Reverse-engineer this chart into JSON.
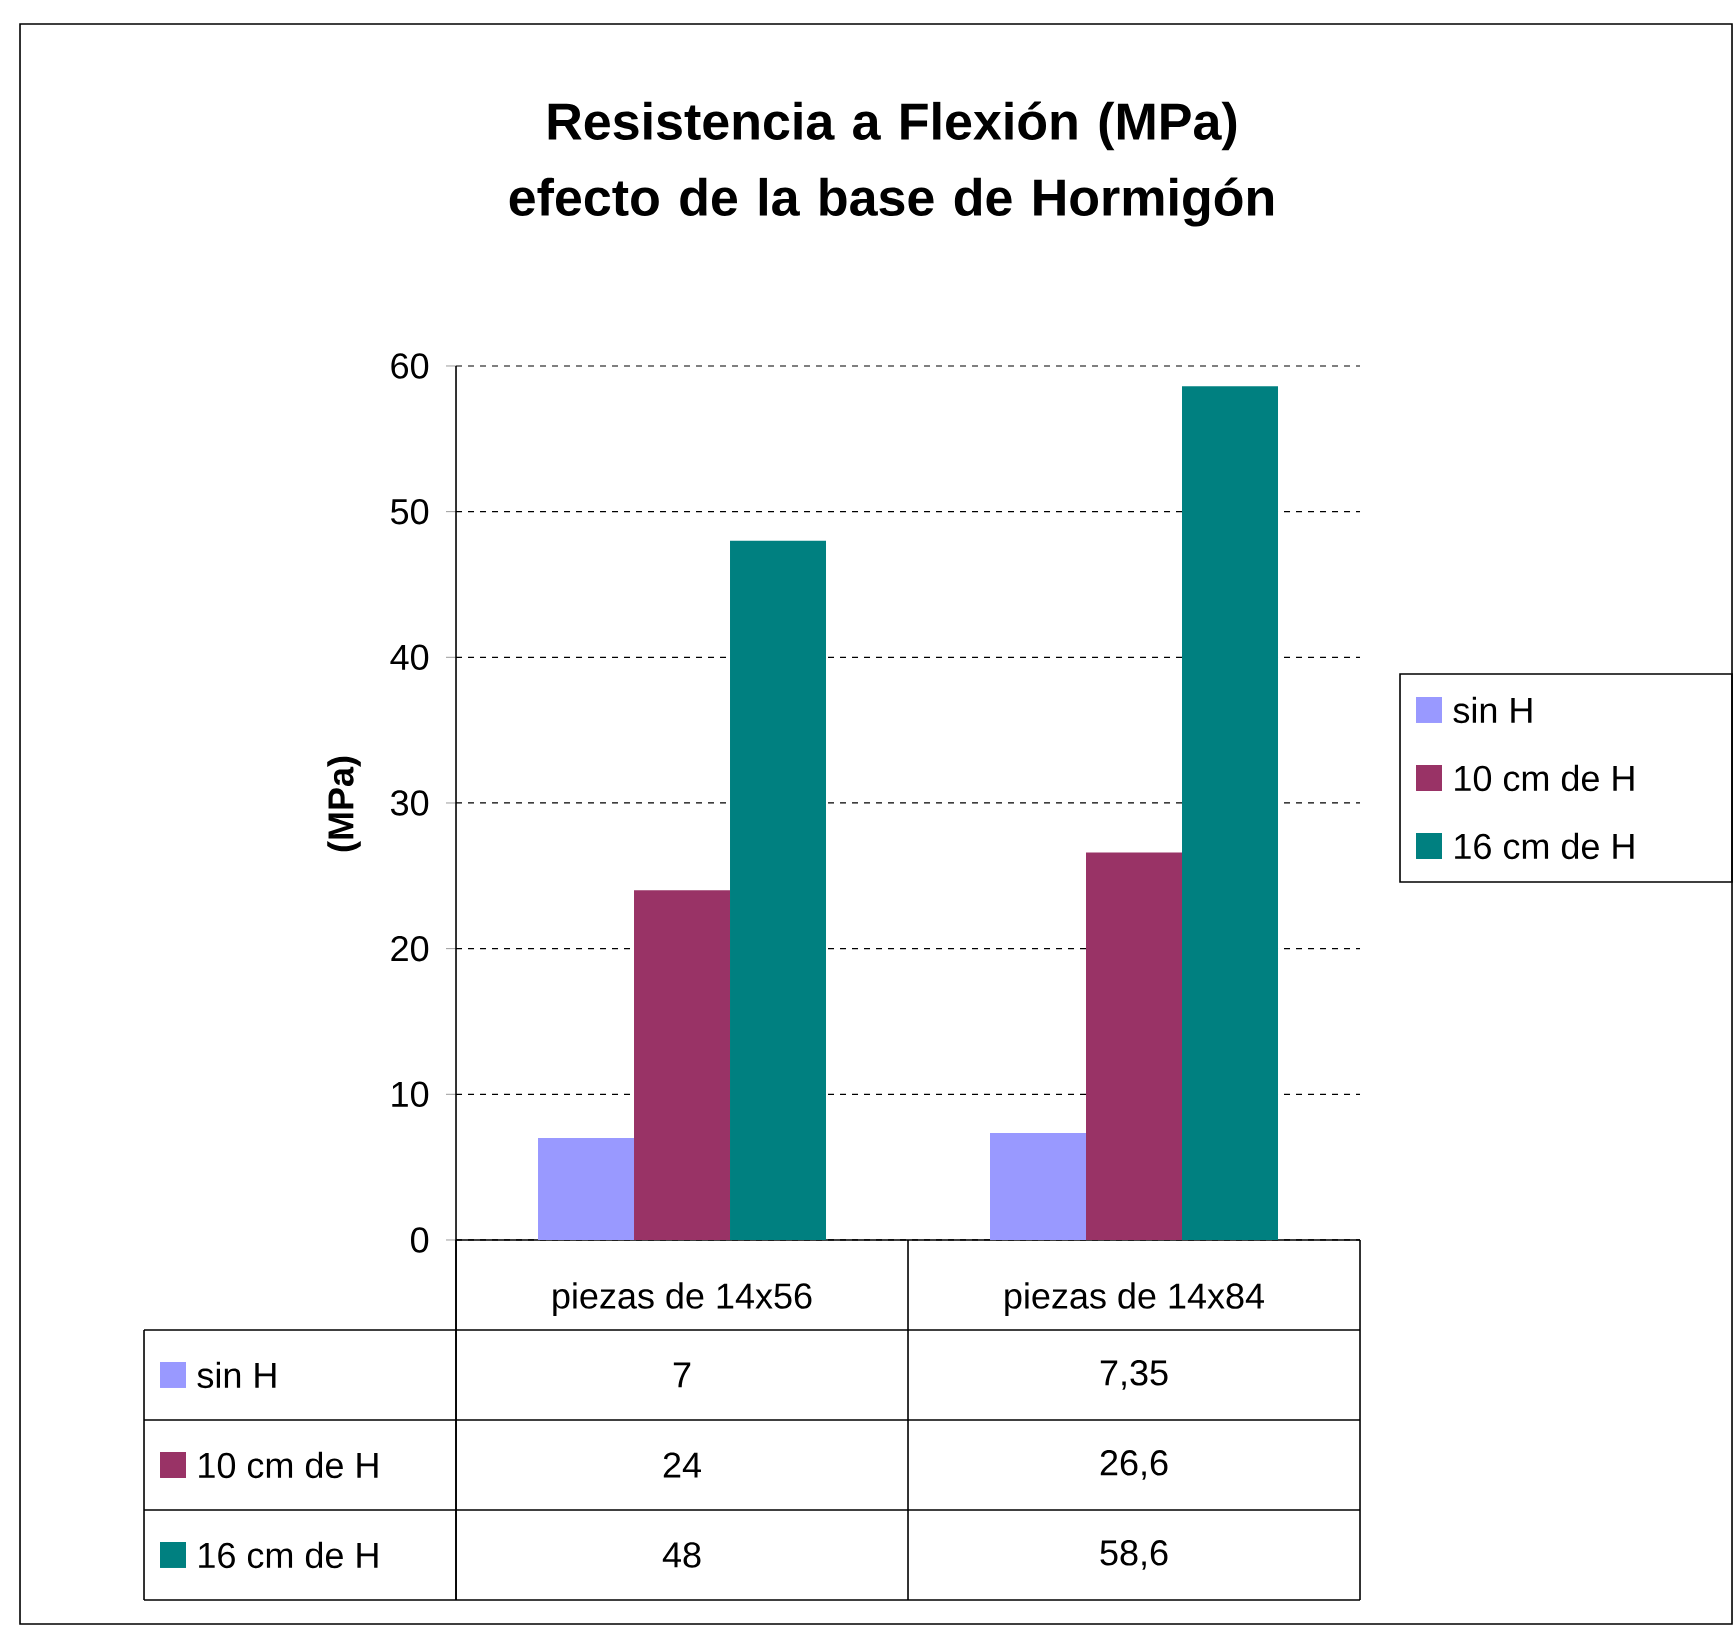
{
  "chart_data": {
    "type": "bar",
    "title": "Resistencia a Flexión (MPa) efecto de la base de Hormigón",
    "ylabel": "(MPa)",
    "categories": [
      "piezas de 14x56",
      "piezas de 14x84"
    ],
    "series": [
      {
        "name": "sin H",
        "color": "#9999ff",
        "values": [
          7,
          7.35
        ],
        "value_labels": [
          "7",
          "7,35"
        ]
      },
      {
        "name": "10 cm de H",
        "color": "#993366",
        "values": [
          24,
          26.6
        ],
        "value_labels": [
          "24",
          "26,6"
        ]
      },
      {
        "name": "16 cm de H",
        "color": "#008080",
        "values": [
          48,
          58.6
        ],
        "value_labels": [
          "48",
          "58,6"
        ]
      }
    ],
    "ylim": [
      0,
      60
    ],
    "yticks": [
      0,
      10,
      20,
      30,
      40,
      50,
      60
    ],
    "grid": "y",
    "legend": "right"
  }
}
